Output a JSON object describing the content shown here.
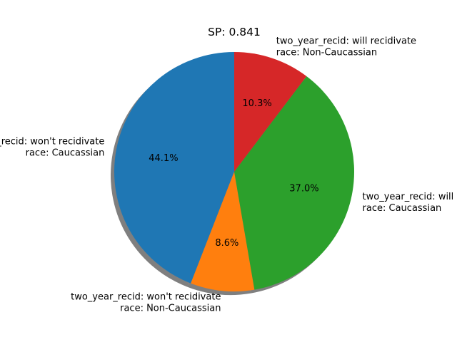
{
  "chart_data": {
    "type": "pie",
    "title": "SP: 0.841",
    "shadow": true,
    "start_angle_deg": 90,
    "direction": "counterclockwise",
    "slices": [
      {
        "label_lines": [
          "two_year_recid: won't recidivate",
          "race: Caucassian"
        ],
        "value": 44.1,
        "pct_label": "44.1%",
        "color": "#1f77b4"
      },
      {
        "label_lines": [
          "two_year_recid: won't recidivate",
          "race: Non-Caucassian"
        ],
        "value": 8.6,
        "pct_label": "8.6%",
        "color": "#ff7f0e"
      },
      {
        "label_lines": [
          "two_year_recid: will recidivate",
          "race: Caucassian"
        ],
        "value": 37.0,
        "pct_label": "37.0%",
        "color": "#2ca02c"
      },
      {
        "label_lines": [
          "two_year_recid: will recidivate",
          "race: Non-Caucassian"
        ],
        "value": 10.3,
        "pct_label": "10.3%",
        "color": "#d62728"
      }
    ]
  }
}
